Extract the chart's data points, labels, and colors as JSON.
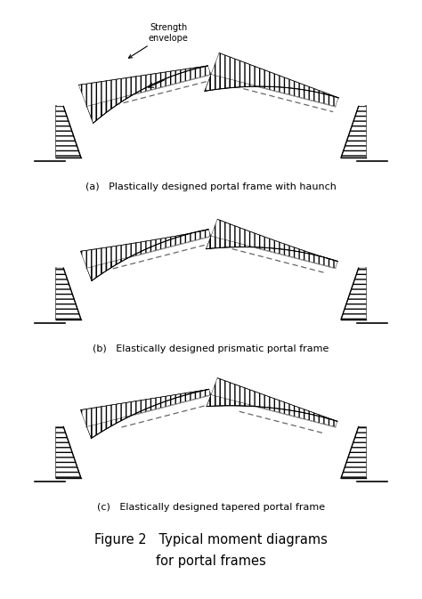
{
  "fig_width": 4.74,
  "fig_height": 6.73,
  "dpi": 100,
  "bg_color": "#ffffff",
  "line_color": "#000000",
  "panel_labels": [
    "(a)   Plastically designed portal frame with haunch",
    "(b)   Elastically designed prismatic portal frame",
    "(c)   Elastically designed tapered portal frame"
  ],
  "figure_caption_line1": "Figure 2   Typical moment diagrams",
  "figure_caption_line2": "for portal frames",
  "annotation_text": "Strength\nenvelope"
}
